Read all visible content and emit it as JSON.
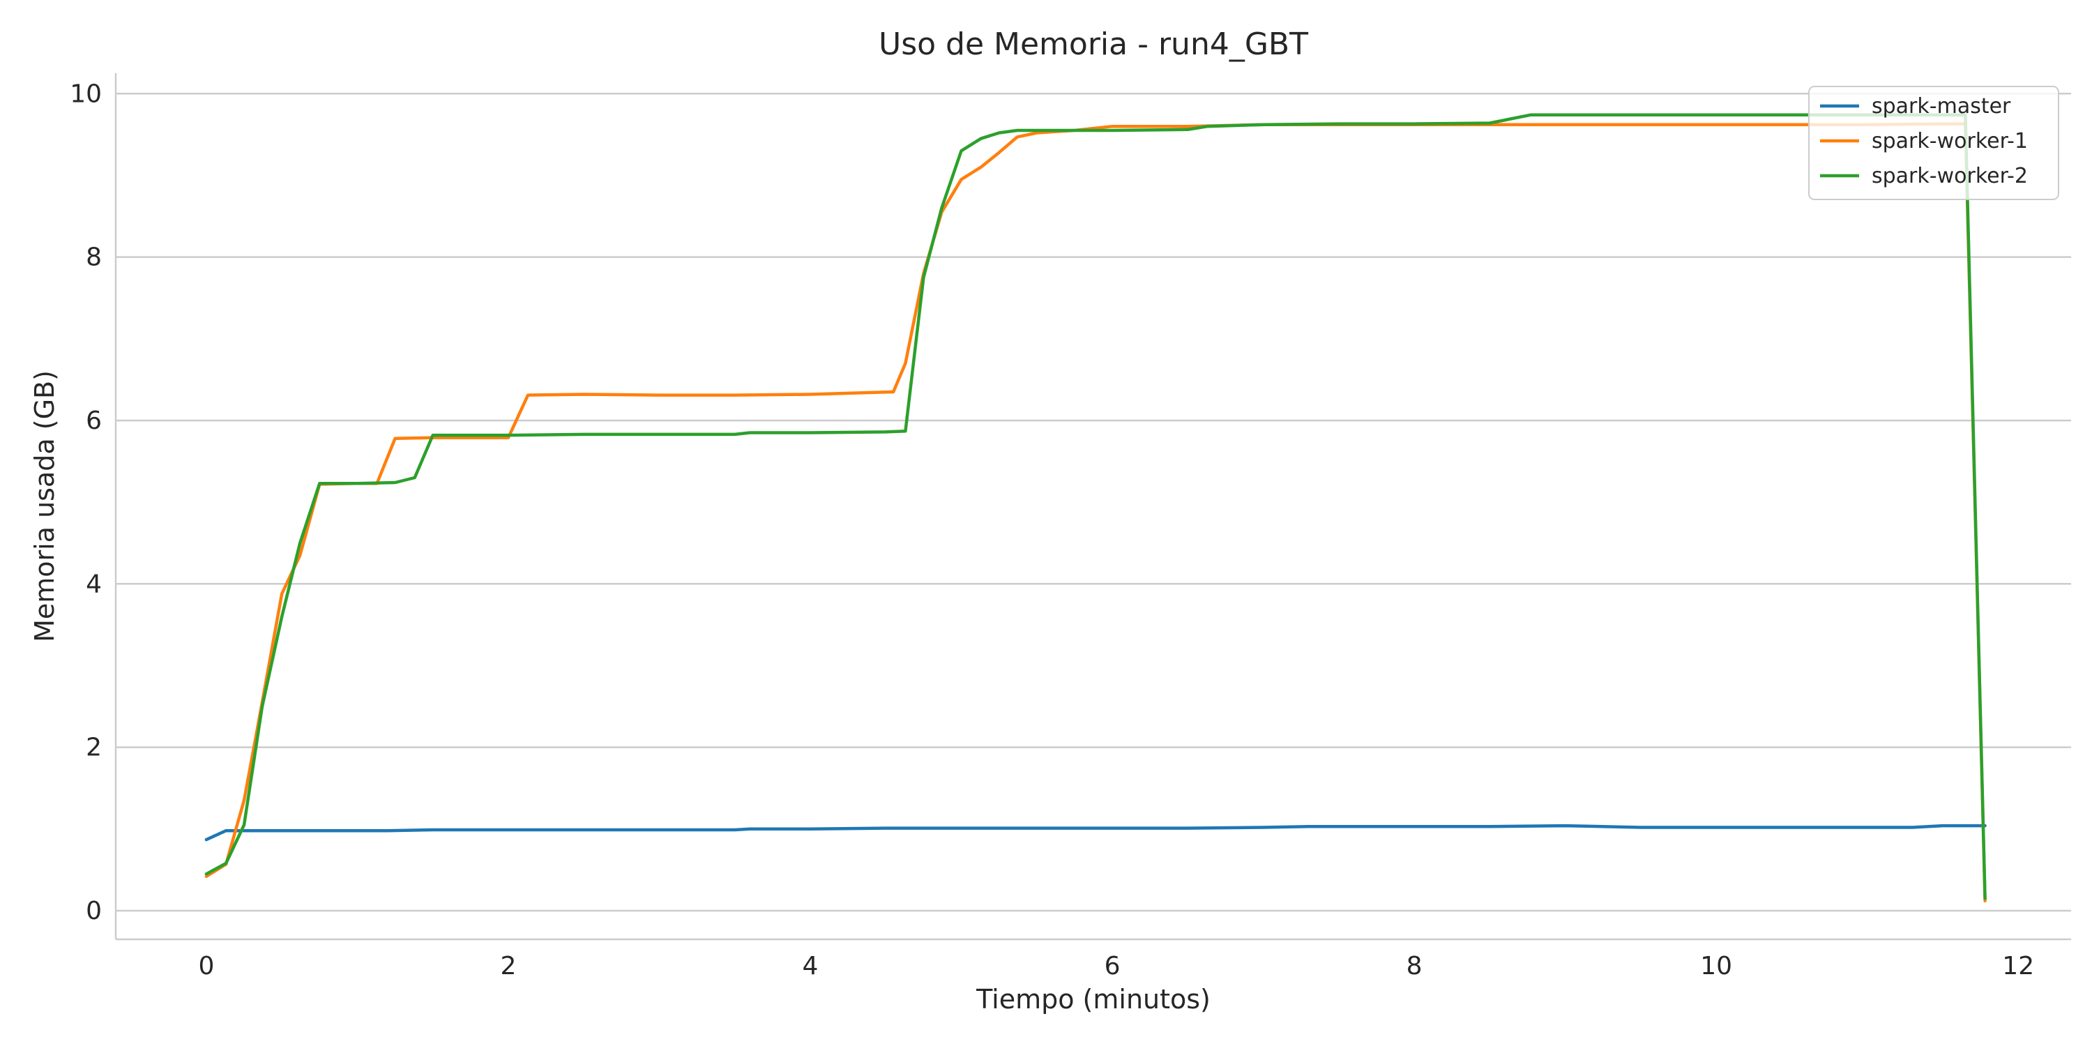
{
  "chart_data": {
    "type": "line",
    "title": "Uso de Memoria - run4_GBT",
    "xlabel": "Tiempo (minutos)",
    "ylabel": "Memoria usada (GB)",
    "xlim": [
      -0.6,
      12.35
    ],
    "ylim": [
      -0.35,
      10.25
    ],
    "xticks": [
      0,
      2,
      4,
      6,
      8,
      10,
      12
    ],
    "yticks": [
      0,
      2,
      4,
      6,
      8,
      10
    ],
    "grid": "horizontal",
    "legend_position": "top-right",
    "series": [
      {
        "name": "spark-master",
        "color": "#1f77b4",
        "x": [
          0,
          0.13,
          0.25,
          0.5,
          1.0,
          1.2,
          1.5,
          2.0,
          2.5,
          3.0,
          3.5,
          3.6,
          4.0,
          4.5,
          5.0,
          5.5,
          6.0,
          6.5,
          7.0,
          7.3,
          7.5,
          8.0,
          8.5,
          9.0,
          9.5,
          10.0,
          10.5,
          11.0,
          11.3,
          11.5,
          11.78
        ],
        "y": [
          0.87,
          0.98,
          0.98,
          0.98,
          0.98,
          0.98,
          0.99,
          0.99,
          0.99,
          0.99,
          0.99,
          1.0,
          1.0,
          1.01,
          1.01,
          1.01,
          1.01,
          1.01,
          1.02,
          1.03,
          1.03,
          1.03,
          1.03,
          1.04,
          1.02,
          1.02,
          1.02,
          1.02,
          1.02,
          1.04,
          1.04
        ]
      },
      {
        "name": "spark-worker-1",
        "color": "#ff7f0e",
        "x": [
          0,
          0.13,
          0.25,
          0.37,
          0.5,
          0.62,
          0.75,
          1.0,
          1.13,
          1.25,
          1.5,
          2.0,
          2.13,
          2.5,
          3.0,
          3.5,
          4.0,
          4.55,
          4.63,
          4.75,
          4.87,
          5.0,
          5.13,
          5.25,
          5.37,
          5.5,
          5.75,
          6.0,
          6.5,
          7.0,
          7.5,
          8.0,
          8.5,
          9.0,
          9.5,
          10.0,
          10.5,
          11.0,
          11.5,
          11.65,
          11.78
        ],
        "y": [
          0.42,
          0.57,
          1.35,
          2.55,
          3.88,
          4.35,
          5.22,
          5.23,
          5.23,
          5.78,
          5.79,
          5.79,
          6.31,
          6.32,
          6.31,
          6.31,
          6.32,
          6.35,
          6.7,
          7.8,
          8.55,
          8.95,
          9.1,
          9.28,
          9.47,
          9.52,
          9.55,
          9.6,
          9.6,
          9.62,
          9.62,
          9.62,
          9.62,
          9.62,
          9.62,
          9.62,
          9.62,
          9.62,
          9.63,
          9.63,
          0.12
        ]
      },
      {
        "name": "spark-worker-2",
        "color": "#2ca02c",
        "x": [
          0,
          0.13,
          0.25,
          0.37,
          0.5,
          0.62,
          0.75,
          1.0,
          1.25,
          1.38,
          1.5,
          2.0,
          2.5,
          3.0,
          3.5,
          3.6,
          4.0,
          4.5,
          4.63,
          4.75,
          4.87,
          5.0,
          5.13,
          5.25,
          5.37,
          5.5,
          6.0,
          6.5,
          6.63,
          7.0,
          7.5,
          8.0,
          8.5,
          8.77,
          9.0,
          9.5,
          10.0,
          10.5,
          11.0,
          11.5,
          11.65,
          11.78
        ],
        "y": [
          0.45,
          0.58,
          1.05,
          2.5,
          3.6,
          4.5,
          5.23,
          5.23,
          5.24,
          5.3,
          5.82,
          5.82,
          5.83,
          5.83,
          5.83,
          5.85,
          5.85,
          5.86,
          5.87,
          7.75,
          8.6,
          9.3,
          9.45,
          9.52,
          9.55,
          9.55,
          9.55,
          9.56,
          9.6,
          9.62,
          9.63,
          9.63,
          9.64,
          9.74,
          9.74,
          9.74,
          9.74,
          9.74,
          9.74,
          9.74,
          9.74,
          0.15
        ]
      }
    ]
  }
}
